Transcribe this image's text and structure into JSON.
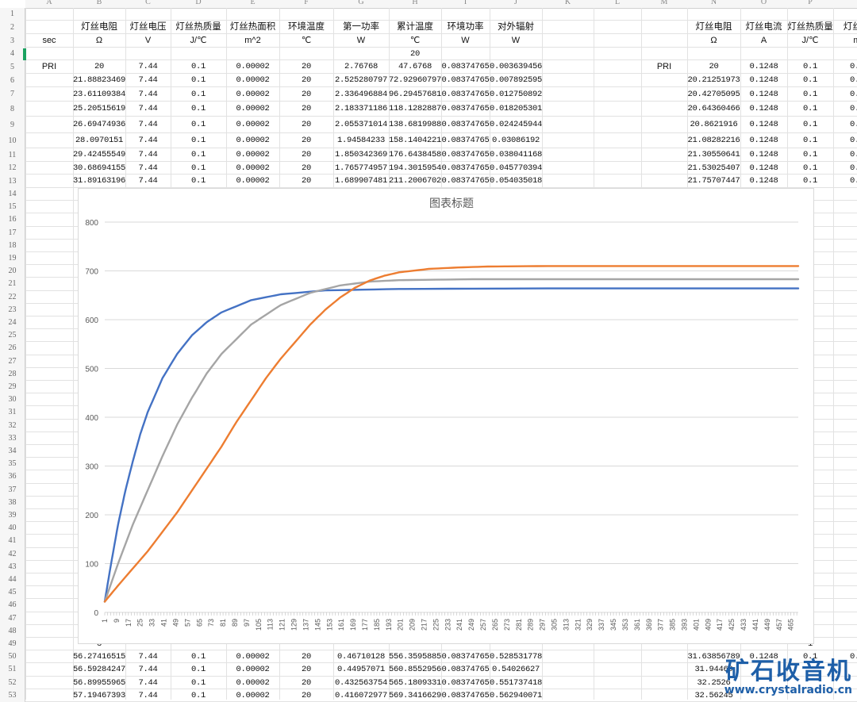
{
  "column_letters": [
    "A",
    "B",
    "C",
    "D",
    "E",
    "F",
    "G",
    "H",
    "I",
    "J",
    "K",
    "L",
    "M",
    "N",
    "O",
    "P"
  ],
  "row_numbers": [
    "1",
    "2",
    "3",
    "4",
    "5",
    "6",
    "7",
    "8",
    "9",
    "10",
    "11",
    "12",
    "13",
    "14",
    "15",
    "16",
    "17",
    "18",
    "19",
    "20",
    "21",
    "22",
    "23",
    "24",
    "25",
    "26",
    "27",
    "28",
    "29",
    "30",
    "31",
    "32",
    "33",
    "34",
    "35",
    "36",
    "37",
    "38",
    "39",
    "40",
    "41",
    "42",
    "43",
    "44",
    "45",
    "46",
    "47",
    "48",
    "49",
    "50",
    "51",
    "52",
    "53"
  ],
  "left_headers": [
    "灯丝电阻",
    "灯丝电压",
    "灯丝热质量",
    "灯丝热面积",
    "环境温度",
    "第一功率",
    "累计温度",
    "环境功率",
    "对外辐射"
  ],
  "left_units": [
    "sec",
    "Ω",
    "V",
    "J/℃",
    "m^2",
    "℃",
    "W",
    "℃",
    "W",
    "W"
  ],
  "h4_value": "20",
  "a5_label": "PRI",
  "left_rows": [
    [
      "20",
      "7.44",
      "0.1",
      "0.00002",
      "20",
      "2.76768",
      "47.6768",
      "0.08374765",
      "0.003639456"
    ],
    [
      "21.88823469",
      "7.44",
      "0.1",
      "0.00002",
      "20",
      "2.525280797",
      "72.92960797",
      "0.08374765",
      "0.007892595"
    ],
    [
      "23.61109384",
      "7.44",
      "0.1",
      "0.00002",
      "20",
      "2.336496884",
      "96.29457681",
      "0.08374765",
      "0.012750892"
    ],
    [
      "25.20515619",
      "7.44",
      "0.1",
      "0.00002",
      "20",
      "2.183371186",
      "118.1282887",
      "0.08374765",
      "0.018205301"
    ],
    [
      "26.69474936",
      "7.44",
      "0.1",
      "0.00002",
      "20",
      "2.055371014",
      "138.6819988",
      "0.08374765",
      "0.024245944"
    ],
    [
      "28.0970151",
      "7.44",
      "0.1",
      "0.00002",
      "20",
      "1.94584233",
      "158.1404221",
      "0.08374765",
      "0.03086192"
    ],
    [
      "29.42455549",
      "7.44",
      "0.1",
      "0.00002",
      "20",
      "1.850342369",
      "176.6438458",
      "0.08374765",
      "0.038041168"
    ],
    [
      "30.68694155",
      "7.44",
      "0.1",
      "0.00002",
      "20",
      "1.765774957",
      "194.3015954",
      "0.08374765",
      "0.045770394"
    ],
    [
      "31.89163196",
      "7.44",
      "0.1",
      "0.00002",
      "20",
      "1.689907481",
      "211.2006702",
      "0.08374765",
      "0.054035018"
    ]
  ],
  "bottom_rows": [
    [
      "56.27416515",
      "7.44",
      "0.1",
      "0.00002",
      "20",
      "0.46710128",
      "556.3595885",
      "0.08374765",
      "0.528531778"
    ],
    [
      "56.59284247",
      "7.44",
      "0.1",
      "0.00002",
      "20",
      "0.44957071",
      "560.8552956",
      "0.08374765",
      "0.54026627"
    ],
    [
      "56.89955965",
      "7.44",
      "0.1",
      "0.00002",
      "20",
      "0.432563754",
      "565.1809331",
      "0.08374765",
      "0.551737418"
    ],
    [
      "57.19467393",
      "7.44",
      "0.1",
      "0.00002",
      "20",
      "0.416072977",
      "569.3416629",
      "0.08374765",
      "0.562940071"
    ]
  ],
  "right_headers": [
    "灯丝电阻",
    "灯丝电流",
    "灯丝热质量",
    "灯丝热"
  ],
  "right_units": [
    "Ω",
    "A",
    "J/℃",
    "m"
  ],
  "m5_label": "PRI",
  "right_rows": [
    [
      "20",
      "0.1248",
      "0.1",
      "0.0"
    ],
    [
      "20.21251973",
      "0.1248",
      "0.1",
      "0.0"
    ],
    [
      "20.42705095",
      "0.1248",
      "0.1",
      "0.0"
    ],
    [
      "20.64360466",
      "0.1248",
      "0.1",
      "0.0"
    ],
    [
      "20.8621916",
      "0.1248",
      "0.1",
      "0.0"
    ],
    [
      "21.08282216",
      "0.1248",
      "0.1",
      "0.0"
    ],
    [
      "21.30550641",
      "0.1248",
      "0.1",
      "0.0"
    ],
    [
      "21.53025407",
      "0.1248",
      "0.1",
      "0.0"
    ],
    [
      "21.75707447",
      "0.1248",
      "0.1",
      "0.0"
    ]
  ],
  "right_bottom_rows": [
    [
      "31.63856789",
      "0.1248",
      "0.1",
      "0.0"
    ],
    [
      "31.94469",
      "",
      " ",
      ""
    ],
    [
      "32.2526",
      "",
      "",
      " "
    ],
    [
      "32.56245",
      "",
      "",
      ""
    ]
  ],
  "p_column_value": "1",
  "b_column_partial": "3",
  "watermark": {
    "main": "矿石收音机",
    "url": "www.crystalradio.cn"
  },
  "colors": {
    "blue": "#4472c4",
    "orange": "#ed7d31",
    "gray": "#a5a5a5",
    "accent": "#1aa260"
  },
  "chart_data": {
    "type": "line",
    "title": "图表标题",
    "xlabel": "",
    "ylabel": "",
    "ylim": [
      0,
      800
    ],
    "yticks": [
      0,
      100,
      200,
      300,
      400,
      500,
      600,
      700,
      800
    ],
    "x_range": [
      1,
      470
    ],
    "xtick_labels": [
      "1",
      "9",
      "17",
      "25",
      "33",
      "41",
      "49",
      "57",
      "65",
      "73",
      "81",
      "89",
      "97",
      "105",
      "113",
      "121",
      "129",
      "137",
      "145",
      "153",
      "161",
      "169",
      "177",
      "185",
      "193",
      "201",
      "209",
      "217",
      "225",
      "233",
      "241",
      "249",
      "257",
      "265",
      "273",
      "281",
      "289",
      "297",
      "305",
      "313",
      "321",
      "329",
      "337",
      "345",
      "353",
      "361",
      "369",
      "377",
      "385",
      "393",
      "401",
      "409",
      "417",
      "425",
      "433",
      "441",
      "449",
      "457",
      "465"
    ],
    "grid": true,
    "legend": "none",
    "series": [
      {
        "color": "#4472c4",
        "x": [
          1,
          5,
          10,
          15,
          20,
          25,
          30,
          40,
          50,
          60,
          70,
          80,
          100,
          120,
          150,
          200,
          300,
          400,
          470
        ],
        "y": [
          22,
          95,
          180,
          250,
          310,
          365,
          410,
          480,
          530,
          568,
          595,
          615,
          640,
          652,
          660,
          663,
          664,
          664,
          664
        ]
      },
      {
        "color": "#a5a5a5",
        "x": [
          1,
          10,
          20,
          30,
          40,
          50,
          60,
          70,
          80,
          100,
          120,
          140,
          160,
          180,
          200,
          250,
          300,
          400,
          470
        ],
        "y": [
          22,
          100,
          180,
          250,
          320,
          385,
          440,
          490,
          530,
          590,
          630,
          655,
          670,
          678,
          681,
          683,
          683,
          683,
          683
        ]
      },
      {
        "color": "#ed7d31",
        "x": [
          1,
          10,
          20,
          30,
          40,
          50,
          60,
          70,
          80,
          90,
          100,
          110,
          120,
          130,
          140,
          150,
          160,
          170,
          180,
          190,
          200,
          220,
          240,
          260,
          300,
          350,
          400,
          470
        ],
        "y": [
          22,
          55,
          90,
          125,
          165,
          205,
          250,
          295,
          340,
          390,
          435,
          480,
          520,
          555,
          590,
          620,
          645,
          665,
          680,
          690,
          697,
          704,
          707,
          709,
          710,
          710,
          710,
          710
        ]
      }
    ]
  }
}
